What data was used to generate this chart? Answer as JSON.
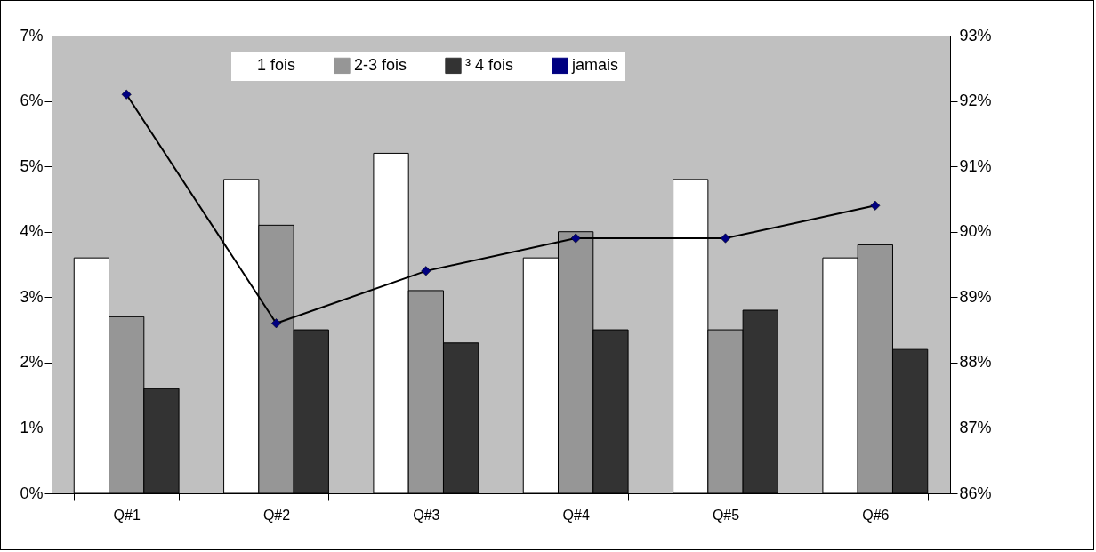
{
  "chart_data": {
    "type": "bar",
    "categories": [
      "Q#1",
      "Q#2",
      "Q#3",
      "Q#4",
      "Q#5",
      "Q#6"
    ],
    "series": [
      {
        "name": "1 fois",
        "color": "#ffffff",
        "values": [
          3.6,
          4.8,
          5.2,
          3.6,
          4.8,
          3.6
        ]
      },
      {
        "name": "2-3 fois",
        "color": "#969696",
        "values": [
          2.7,
          4.1,
          3.1,
          4.0,
          2.5,
          3.8
        ]
      },
      {
        "name": "³ 4 fois",
        "color": "#333333",
        "values": [
          1.6,
          2.5,
          2.3,
          2.5,
          2.8,
          2.2
        ]
      },
      {
        "name": "jamais",
        "type": "line",
        "axis": "y2",
        "color": "#000080",
        "values": [
          92.1,
          88.6,
          89.4,
          89.9,
          89.9,
          90.4
        ]
      }
    ],
    "ylim": [
      0,
      7
    ],
    "yticks": [
      {
        "value": 0,
        "label": "0%"
      },
      {
        "value": 1,
        "label": "1%"
      },
      {
        "value": 2,
        "label": "2%"
      },
      {
        "value": 3,
        "label": "3%"
      },
      {
        "value": 4,
        "label": "4%"
      },
      {
        "value": 5,
        "label": "5%"
      },
      {
        "value": 6,
        "label": "6%"
      },
      {
        "value": 7,
        "label": "7%"
      }
    ],
    "y2lim": [
      86,
      93
    ],
    "y2ticks": [
      {
        "value": 86,
        "label": "86%"
      },
      {
        "value": 87,
        "label": "87%"
      },
      {
        "value": 88,
        "label": "88%"
      },
      {
        "value": 89,
        "label": "89%"
      },
      {
        "value": 90,
        "label": "90%"
      },
      {
        "value": 91,
        "label": "91%"
      },
      {
        "value": 92,
        "label": "92%"
      },
      {
        "value": 93,
        "label": "93%"
      }
    ],
    "grid": false,
    "legend": "top",
    "marker": "diamond",
    "line_style": "solid"
  }
}
